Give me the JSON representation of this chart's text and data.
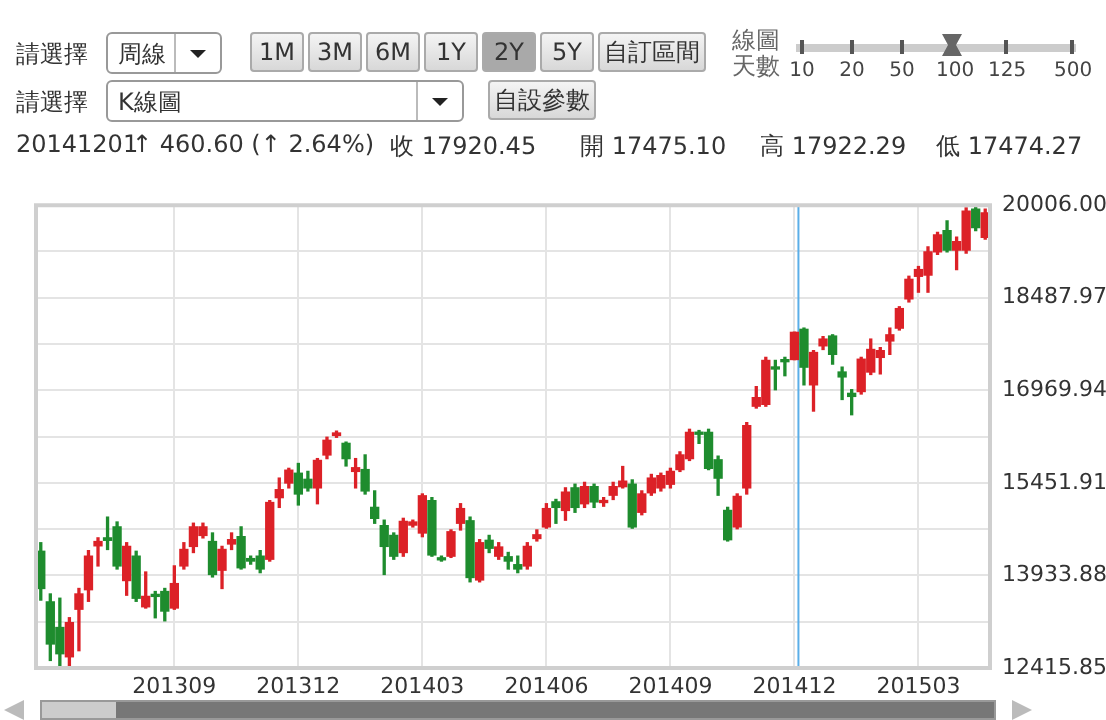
{
  "chart_data": {
    "type": "candlestick",
    "categories": [
      null,
      null,
      null,
      null,
      null,
      null,
      null,
      null,
      null,
      null,
      null,
      null,
      null,
      null,
      "201309",
      null,
      null,
      null,
      null,
      null,
      null,
      null,
      null,
      null,
      null,
      null,
      null,
      "201312",
      null,
      null,
      null,
      null,
      null,
      null,
      null,
      null,
      null,
      null,
      null,
      null,
      "201403",
      null,
      null,
      null,
      null,
      null,
      null,
      null,
      null,
      null,
      null,
      null,
      null,
      "201406",
      null,
      null,
      null,
      null,
      null,
      null,
      null,
      null,
      null,
      null,
      null,
      null,
      "201409",
      null,
      null,
      null,
      null,
      null,
      null,
      null,
      null,
      null,
      null,
      null,
      null,
      "201412",
      null,
      null,
      null,
      null,
      null,
      null,
      null,
      null,
      null,
      null,
      null,
      null,
      "201503",
      null,
      null,
      null,
      null,
      null,
      null,
      null
    ],
    "ohlc": [
      [
        14330,
        14470,
        13530,
        13720
      ],
      [
        13500,
        13630,
        12540,
        12810
      ],
      [
        13080,
        13560,
        12415.85,
        12650
      ],
      [
        12600,
        13240,
        12450,
        13160
      ],
      [
        13380,
        13720,
        12700,
        13630
      ],
      [
        13700,
        14340,
        13510,
        14250
      ],
      [
        14420,
        14550,
        14090,
        14490
      ],
      [
        14550,
        14890,
        14360,
        14510
      ],
      [
        14730,
        14810,
        14040,
        14090
      ],
      [
        13850,
        14470,
        13610,
        14410
      ],
      [
        14250,
        14330,
        13510,
        13560
      ],
      [
        13420,
        13990,
        13400,
        13590
      ],
      [
        13610,
        13670,
        13240,
        13590
      ],
      [
        13670,
        13720,
        13190,
        13350
      ],
      [
        13400,
        14090,
        13380,
        13800
      ],
      [
        14090,
        14470,
        14040,
        14360
      ],
      [
        14410,
        14790,
        14310,
        14730
      ],
      [
        14590,
        14790,
        14550,
        14730
      ],
      [
        14490,
        14630,
        13910,
        13950
      ],
      [
        14020,
        14410,
        13720,
        14360
      ],
      [
        14450,
        14630,
        14360,
        14520
      ],
      [
        14570,
        14730,
        14040,
        14060
      ],
      [
        14210,
        14250,
        14120,
        14170
      ],
      [
        14250,
        14340,
        13980,
        14040
      ],
      [
        14200,
        15160,
        14170,
        15130
      ],
      [
        15210,
        15530,
        15050,
        15340
      ],
      [
        15450,
        15690,
        15370,
        15660
      ],
      [
        15610,
        15770,
        15090,
        15270
      ],
      [
        15510,
        15640,
        15320,
        15370
      ],
      [
        15370,
        15850,
        15110,
        15820
      ],
      [
        15910,
        16200,
        15850,
        16150
      ],
      [
        16230,
        16300,
        16200,
        16270
      ],
      [
        16100,
        16120,
        15730,
        15850
      ],
      [
        15640,
        15850,
        15370,
        15700
      ],
      [
        15670,
        15910,
        15270,
        15320
      ],
      [
        15050,
        15320,
        14790,
        14870
      ],
      [
        14750,
        14840,
        13950,
        14410
      ],
      [
        14590,
        14630,
        14200,
        14250
      ],
      [
        14310,
        14870,
        14250,
        14820
      ],
      [
        14760,
        14840,
        14730,
        14810
      ],
      [
        14630,
        15270,
        14570,
        15240
      ],
      [
        15160,
        15210,
        14250,
        14270
      ],
      [
        14220,
        14250,
        14170,
        14190
      ],
      [
        14250,
        14680,
        14230,
        14650
      ],
      [
        14790,
        15110,
        14680,
        15030
      ],
      [
        14830,
        14890,
        13830,
        13900
      ],
      [
        13860,
        14520,
        13830,
        14470
      ],
      [
        14510,
        14590,
        14310,
        14380
      ],
      [
        14250,
        14470,
        14200,
        14400
      ],
      [
        14240,
        14310,
        14040,
        14170
      ],
      [
        14110,
        14250,
        13980,
        14040
      ],
      [
        14090,
        14470,
        14040,
        14410
      ],
      [
        14540,
        14680,
        14500,
        14600
      ],
      [
        14730,
        15110,
        14710,
        15030
      ],
      [
        15140,
        15180,
        14790,
        15050
      ],
      [
        15000,
        15370,
        14840,
        15300
      ],
      [
        15370,
        15430,
        14970,
        15050
      ],
      [
        15110,
        15460,
        15050,
        15390
      ],
      [
        15390,
        15430,
        15050,
        15140
      ],
      [
        15130,
        15210,
        15070,
        15160
      ],
      [
        15250,
        15460,
        15180,
        15390
      ],
      [
        15390,
        15720,
        15370,
        15480
      ],
      [
        15430,
        15500,
        14710,
        14730
      ],
      [
        14970,
        15320,
        14930,
        15270
      ],
      [
        15290,
        15590,
        15250,
        15530
      ],
      [
        15370,
        15610,
        15320,
        15570
      ],
      [
        15430,
        15690,
        15370,
        15640
      ],
      [
        15670,
        15960,
        15640,
        15910
      ],
      [
        15850,
        16330,
        15820,
        16280
      ],
      [
        16280,
        16310,
        16100,
        16250
      ],
      [
        16280,
        16330,
        15670,
        15690
      ],
      [
        15830,
        15890,
        15250,
        15530
      ],
      [
        15000,
        15050,
        14500,
        14520
      ],
      [
        14730,
        15270,
        14700,
        15230
      ],
      [
        15370,
        16440,
        15270,
        16390
      ],
      [
        16710,
        17030,
        16680,
        16850
      ],
      [
        16740,
        17510,
        16710,
        17460
      ],
      [
        17350,
        17460,
        16980,
        17320
      ],
      [
        17470,
        17510,
        17210,
        17440
      ],
      [
        17475.1,
        17922.29,
        17474.27,
        17920.45
      ],
      [
        17970,
        17990,
        17060,
        17350
      ],
      [
        17060,
        17620,
        16630,
        17590
      ],
      [
        17700,
        17850,
        17640,
        17810
      ],
      [
        17860,
        17880,
        17400,
        17560
      ],
      [
        17270,
        17350,
        16820,
        17190
      ],
      [
        16920,
        16980,
        16570,
        16870
      ],
      [
        16950,
        17510,
        16910,
        17480
      ],
      [
        17270,
        17810,
        17230,
        17640
      ],
      [
        17510,
        17670,
        17240,
        17620
      ],
      [
        17780,
        17990,
        17560,
        17880
      ],
      [
        17990,
        18340,
        17960,
        18310
      ],
      [
        18470,
        18840,
        18420,
        18790
      ],
      [
        18840,
        19000,
        18580,
        18950
      ],
      [
        18860,
        19320,
        18580,
        19240
      ],
      [
        19240,
        19560,
        19200,
        19520
      ],
      [
        19590,
        19750,
        19240,
        19270
      ],
      [
        19270,
        19480,
        18950,
        19410
      ],
      [
        19270,
        19960,
        19220,
        19910
      ],
      [
        19940,
        20006,
        19590,
        19640
      ],
      [
        19480,
        19940,
        19450,
        19880
      ]
    ],
    "colors": [
      "#1e8c2e",
      "#1e8c2e",
      "#1e8c2e",
      "#dc2127",
      "#dc2127",
      "#dc2127",
      "#dc2127",
      "#1e8c2e",
      "#1e8c2e",
      "#dc2127",
      "#1e8c2e",
      "#dc2127",
      "#1e8c2e",
      "#1e8c2e",
      "#dc2127",
      "#dc2127",
      "#dc2127",
      "#dc2127",
      "#1e8c2e",
      "#dc2127",
      "#dc2127",
      "#1e8c2e",
      "#1e8c2e",
      "#1e8c2e",
      "#dc2127",
      "#dc2127",
      "#dc2127",
      "#1e8c2e",
      "#1e8c2e",
      "#dc2127",
      "#dc2127",
      "#dc2127",
      "#1e8c2e",
      "#dc2127",
      "#1e8c2e",
      "#1e8c2e",
      "#1e8c2e",
      "#1e8c2e",
      "#dc2127",
      "#dc2127",
      "#dc2127",
      "#1e8c2e",
      "#1e8c2e",
      "#dc2127",
      "#dc2127",
      "#1e8c2e",
      "#dc2127",
      "#1e8c2e",
      "#dc2127",
      "#1e8c2e",
      "#1e8c2e",
      "#dc2127",
      "#dc2127",
      "#dc2127",
      "#1e8c2e",
      "#dc2127",
      "#1e8c2e",
      "#dc2127",
      "#1e8c2e",
      "#dc2127",
      "#dc2127",
      "#dc2127",
      "#1e8c2e",
      "#dc2127",
      "#dc2127",
      "#dc2127",
      "#dc2127",
      "#dc2127",
      "#dc2127",
      "#1e8c2e",
      "#1e8c2e",
      "#1e8c2e",
      "#1e8c2e",
      "#dc2127",
      "#dc2127",
      "#dc2127",
      "#dc2127",
      "#1e8c2e",
      "#1e8c2e",
      "#dc2127",
      "#1e8c2e",
      "#dc2127",
      "#dc2127",
      "#1e8c2e",
      "#1e8c2e",
      "#1e8c2e",
      "#dc2127",
      "#dc2127",
      "#dc2127",
      "#dc2127",
      "#dc2127",
      "#dc2127",
      "#dc2127",
      "#dc2127",
      "#dc2127",
      "#1e8c2e",
      "#dc2127",
      "#dc2127",
      "#1e8c2e",
      "#dc2127"
    ],
    "ylim": [
      12415.85,
      20006
    ],
    "yticks": [
      {
        "value": 12415.85,
        "label": "12415.85"
      },
      {
        "value": 13174.865,
        "label": null
      },
      {
        "value": 13933.88,
        "label": "13933.88"
      },
      {
        "value": 14692.895,
        "label": null
      },
      {
        "value": 15451.91,
        "label": "15451.91"
      },
      {
        "value": 16210.925,
        "label": null
      },
      {
        "value": 16969.94,
        "label": "16969.94"
      },
      {
        "value": 17728.955,
        "label": null
      },
      {
        "value": 18487.97,
        "label": "18487.97"
      },
      {
        "value": 19246.985,
        "label": null
      },
      {
        "value": 20006,
        "label": "20006.00"
      }
    ],
    "grid": true,
    "ref_lines": [
      {
        "axis": "x",
        "value": "201412",
        "color": "#5aaee8"
      }
    ],
    "annotations": [
      "請選擇",
      "周線",
      "1M",
      "3M",
      "6M",
      "1Y",
      "2Y",
      "5Y",
      "自訂區間",
      "線圖天數",
      "10",
      "20",
      "50",
      "100",
      "125",
      "500",
      "請選擇",
      "K線圖",
      "自設參數",
      "20141201",
      "↑ 460.60 (↑ 2.64%)",
      "收 17920.45",
      "開 17475.10",
      "高 17922.29",
      "低 17474.27"
    ]
  }
}
